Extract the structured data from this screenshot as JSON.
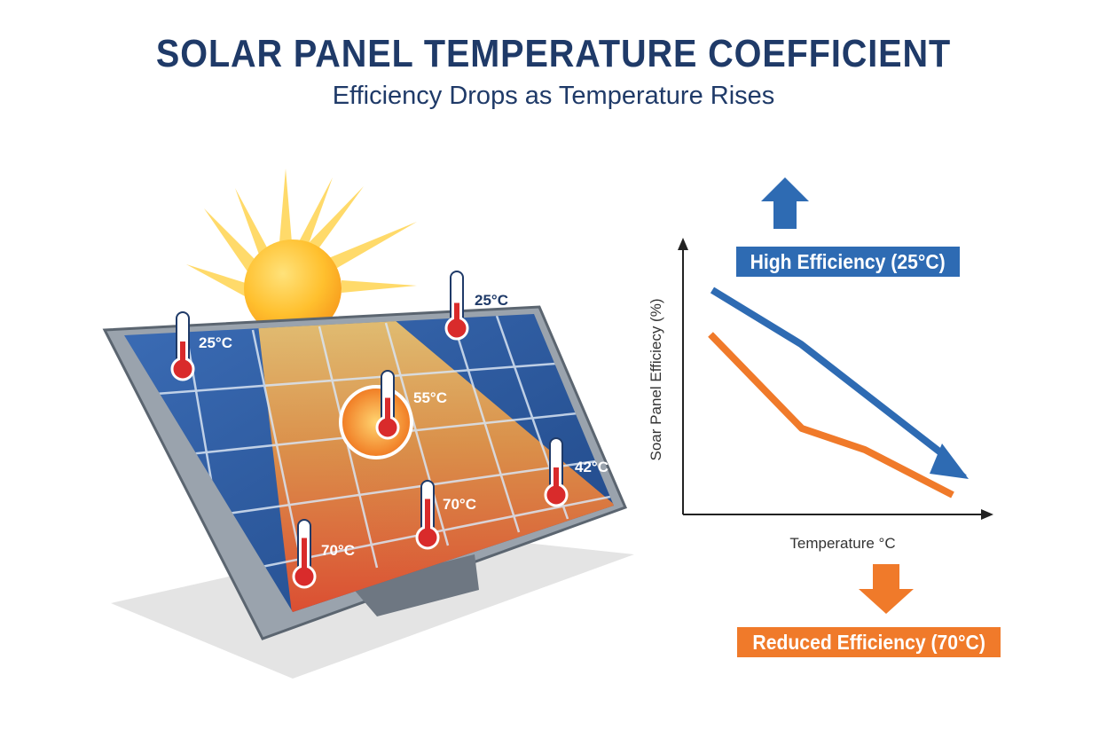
{
  "header": {
    "title": "SOLAR PANEL TEMPERATURE COEFFICIENT",
    "subtitle": "Efficiency Drops as Temperature Rises"
  },
  "thermometers": [
    {
      "label": "25°C",
      "level": 0.5
    },
    {
      "label": "25°C",
      "level": 0.45
    },
    {
      "label": "55°C",
      "level": 0.55
    },
    {
      "label": "42°C",
      "level": 0.5
    },
    {
      "label": "70°C",
      "level": 0.75
    },
    {
      "label": "70°C",
      "level": 0.75
    }
  ],
  "chart": {
    "ylabel": "Soar Panel Efficiecy (%)",
    "xlabel": "Temperature °C",
    "high_label": "High Efficiency (25°C)",
    "low_label": "Reduced Efficiency (70°C)"
  },
  "colors": {
    "title": "#1f3a68",
    "blue": "#2e6bb3",
    "orange": "#f07a2a",
    "panel_blue": "#2c5aa0",
    "hot_orange": "#f36b2c",
    "label_text": "#1f3a68"
  }
}
